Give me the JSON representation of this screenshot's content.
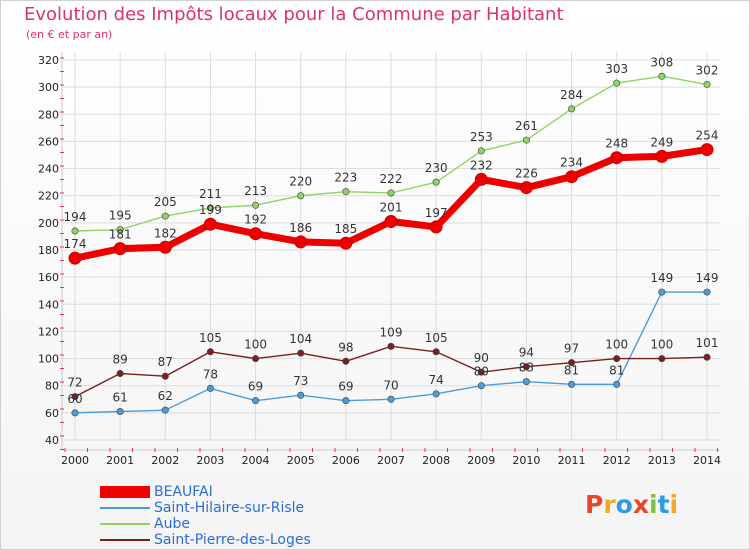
{
  "title": "Evolution des Impôts locaux pour la Commune par Habitant",
  "subtitle": "(en € et par an)",
  "logo": {
    "text": "Proxiti",
    "colors": [
      "#e8462a",
      "#f5a623",
      "#2f9be0",
      "#e8462a",
      "#7cc242",
      "#2f9be0",
      "#f5a623"
    ]
  },
  "chart_data": {
    "type": "line",
    "x": [
      "2000",
      "2001",
      "2002",
      "2003",
      "2004",
      "2005",
      "2006",
      "2007",
      "2008",
      "2009",
      "2010",
      "2011",
      "2012",
      "2013",
      "2014"
    ],
    "ylim": [
      40,
      320
    ],
    "yticks": [
      40,
      60,
      80,
      100,
      120,
      140,
      160,
      180,
      200,
      220,
      240,
      260,
      280,
      300,
      320
    ],
    "grid": true,
    "legend_position": "bottom-left",
    "series": [
      {
        "name": "BEAUFAI",
        "color": "#ee0000",
        "width": 7,
        "marker": 6,
        "values": [
          174,
          181,
          182,
          199,
          192,
          186,
          185,
          201,
          197,
          232,
          226,
          234,
          248,
          249,
          254
        ]
      },
      {
        "name": "Saint-Hilaire-sur-Risle",
        "color": "#4f9bd8",
        "width": 1.4,
        "marker": 3.2,
        "values": [
          60,
          61,
          62,
          78,
          69,
          73,
          69,
          70,
          74,
          80,
          83,
          81,
          81,
          149,
          149
        ]
      },
      {
        "name": "Aube",
        "color": "#8fd460",
        "width": 1.4,
        "marker": 3.2,
        "values": [
          194,
          195,
          205,
          211,
          213,
          220,
          223,
          222,
          230,
          253,
          261,
          284,
          303,
          308,
          302
        ]
      },
      {
        "name": "Saint-Pierre-des-Loges",
        "color": "#7a1f1f",
        "width": 1.4,
        "marker": 3.2,
        "values": [
          72,
          89,
          87,
          105,
          100,
          104,
          98,
          109,
          105,
          90,
          94,
          97,
          100,
          100,
          101
        ]
      }
    ]
  }
}
